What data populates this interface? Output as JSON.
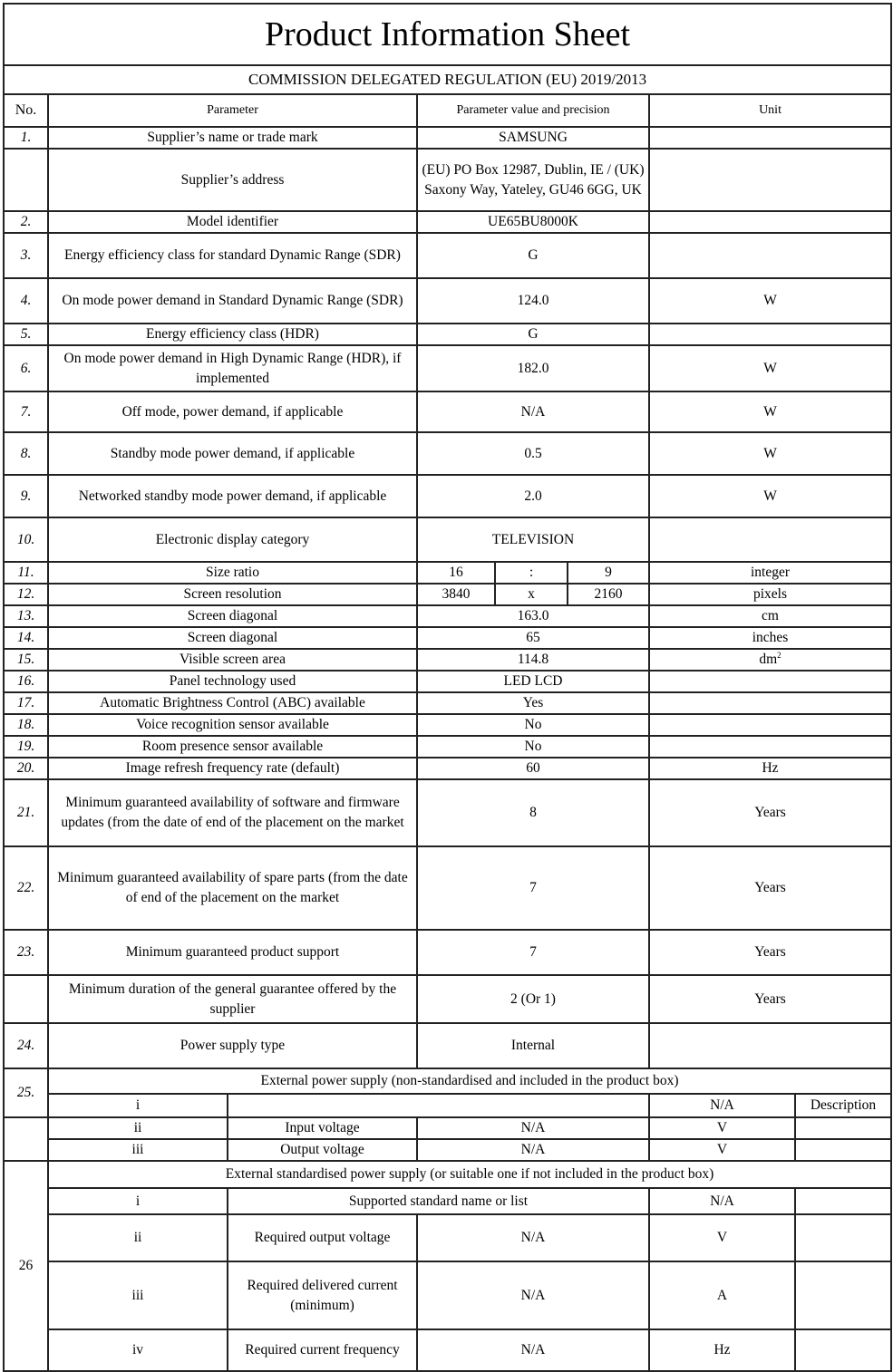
{
  "title": "Product Information Sheet",
  "regulation": "COMMISSION DELEGATED REGULATION (EU) 2019/2013",
  "headers": {
    "no": "No.",
    "parameter": "Parameter",
    "value": "Parameter value and precision",
    "unit": "Unit"
  },
  "rows": [
    {
      "no": "1.",
      "parameter": "Supplier’s name or trade mark",
      "value": "SAMSUNG",
      "unit": ""
    },
    {
      "no": "",
      "parameter": "Supplier’s address",
      "value": "(EU) PO Box 12987, Dublin, IE / (UK) Saxony Way, Yateley, GU46 6GG, UK",
      "unit": ""
    },
    {
      "no": "2.",
      "parameter": "Model identifier",
      "value": "UE65BU8000K",
      "unit": ""
    },
    {
      "no": "3.",
      "parameter": "Energy efficiency class for standard Dynamic Range (SDR)",
      "value": "G",
      "unit": ""
    },
    {
      "no": "4.",
      "parameter": "On mode power demand in Standard Dynamic Range (SDR)",
      "value": "124.0",
      "unit": "W"
    },
    {
      "no": "5.",
      "parameter": "Energy efficiency class (HDR)",
      "value": "G",
      "unit": ""
    },
    {
      "no": "6.",
      "parameter": "On mode power demand in High Dynamic Range (HDR), if implemented",
      "value": "182.0",
      "unit": "W"
    },
    {
      "no": "7.",
      "parameter": "Off mode, power demand, if applicable",
      "value": "N/A",
      "unit": "W"
    },
    {
      "no": "8.",
      "parameter": "Standby mode power demand, if applicable",
      "value": "0.5",
      "unit": "W"
    },
    {
      "no": "9.",
      "parameter": "Networked standby mode power demand, if applicable",
      "value": "2.0",
      "unit": "W"
    },
    {
      "no": "10.",
      "parameter": "Electronic display category",
      "value": "TELEVISION",
      "unit": ""
    },
    {
      "no": "11.",
      "parameter": "Size ratio",
      "value_parts": [
        "16",
        ":",
        "9"
      ],
      "unit": "integer"
    },
    {
      "no": "12.",
      "parameter": "Screen resolution",
      "value_parts": [
        "3840",
        "x",
        "2160"
      ],
      "unit": "pixels"
    },
    {
      "no": "13.",
      "parameter": "Screen diagonal",
      "value": "163.0",
      "unit": "cm"
    },
    {
      "no": "14.",
      "parameter": "Screen diagonal",
      "value": "65",
      "unit": "inches"
    },
    {
      "no": "15.",
      "parameter": "Visible screen area",
      "value": "114.8",
      "unit": "dm",
      "unit_sup": "2"
    },
    {
      "no": "16.",
      "parameter": "Panel technology used",
      "value": "LED LCD",
      "unit": ""
    },
    {
      "no": "17.",
      "parameter": "Automatic Brightness Control (ABC) available",
      "value": "Yes",
      "unit": ""
    },
    {
      "no": "18.",
      "parameter": "Voice recognition sensor available",
      "value": "No",
      "unit": ""
    },
    {
      "no": "19.",
      "parameter": "Room presence sensor available",
      "value": "No",
      "unit": ""
    },
    {
      "no": "20.",
      "parameter": "Image refresh frequency rate (default)",
      "value": "60",
      "unit": "Hz"
    },
    {
      "no": "21.",
      "parameter": "Minimum guaranteed availability of software and firmware updates (from the date of end of the placement on the market",
      "value": "8",
      "unit": "Years"
    },
    {
      "no": "22.",
      "parameter": "Minimum guaranteed availability of spare parts (from the date of end of the placement on the market",
      "value": "7",
      "unit": "Years"
    },
    {
      "no": "23.",
      "parameter": "Minimum guaranteed product support",
      "value": "7",
      "unit": "Years"
    },
    {
      "no": "",
      "parameter": "Minimum duration of the general guarantee offered by the supplier",
      "value": "2 (Or 1)",
      "unit": "Years"
    },
    {
      "no": "24.",
      "parameter": "Power supply type",
      "value": "Internal",
      "unit": ""
    }
  ],
  "external_psu": {
    "no": "25.",
    "heading": "External power supply (non-standardised and included in the product box)",
    "sub": [
      {
        "idx": "i",
        "parameter": "",
        "value": "",
        "unit": "N/A",
        "desc": "Description"
      },
      {
        "idx": "ii",
        "parameter": "Input voltage",
        "value": "N/A",
        "unit": "V",
        "desc": ""
      },
      {
        "idx": "iii",
        "parameter": "Output voltage",
        "value": "N/A",
        "unit": "V",
        "desc": ""
      }
    ]
  },
  "standard_psu": {
    "no": "26",
    "heading": "External standardised power supply (or suitable one if not included in the product box)",
    "sub": [
      {
        "idx": "i",
        "parameter": "Supported standard name or list",
        "unit": "N/A",
        "desc": ""
      },
      {
        "idx": "ii",
        "parameter": "Required output voltage",
        "value": "N/A",
        "unit": "V",
        "desc": ""
      },
      {
        "idx": "iii",
        "parameter": "Required delivered current (minimum)",
        "value": "N/A",
        "unit": "A",
        "desc": ""
      },
      {
        "idx": "iv",
        "parameter": "Required current frequency",
        "value": "N/A",
        "unit": "Hz",
        "desc": ""
      }
    ]
  }
}
